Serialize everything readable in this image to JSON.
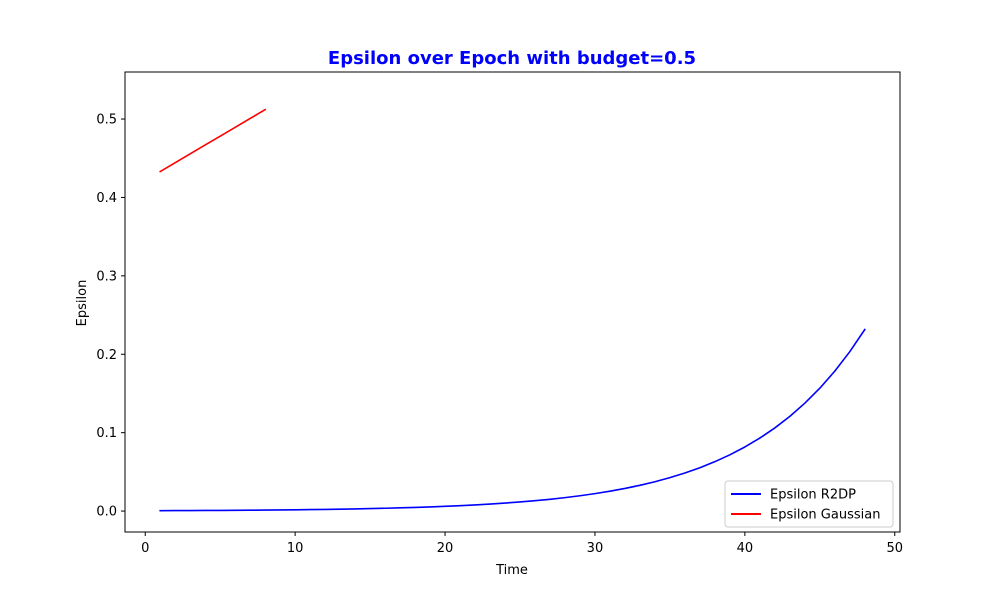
{
  "colors": {
    "title": "#0000ff",
    "axes": "#000000",
    "legend_border": "#cccccc"
  },
  "chart_data": {
    "type": "line",
    "title": "Epsilon over Epoch with budget=0.5",
    "xlabel": "Time",
    "ylabel": "Epsilon",
    "xlim": [
      -1.35,
      50.35
    ],
    "ylim": [
      -0.0267,
      0.56
    ],
    "xticks": [
      0,
      10,
      20,
      30,
      40,
      50
    ],
    "yticks": [
      0.0,
      0.1,
      0.2,
      0.3,
      0.4,
      0.5
    ],
    "ytick_labels": [
      "0.0",
      "0.1",
      "0.2",
      "0.3",
      "0.4",
      "0.5"
    ],
    "grid": false,
    "legend_position": "lower-right",
    "series": [
      {
        "name": "Epsilon R2DP",
        "color": "#0000ff",
        "x": [
          1,
          2,
          3,
          4,
          5,
          6,
          7,
          8,
          9,
          10,
          11,
          12,
          13,
          14,
          15,
          16,
          17,
          18,
          19,
          20,
          21,
          22,
          23,
          24,
          25,
          26,
          27,
          28,
          29,
          30,
          31,
          32,
          33,
          34,
          35,
          36,
          37,
          38,
          39,
          40,
          41,
          42,
          43,
          44,
          45,
          46,
          47,
          48
        ],
        "y": [
          0.00051,
          0.00058,
          0.00066,
          0.00075,
          0.00086,
          0.00098,
          0.00111,
          0.00127,
          0.00144,
          0.00164,
          0.00187,
          0.00213,
          0.00243,
          0.00277,
          0.00315,
          0.00359,
          0.00409,
          0.00466,
          0.00531,
          0.00605,
          0.00689,
          0.00785,
          0.00894,
          0.01018,
          0.0116,
          0.01321,
          0.01505,
          0.01714,
          0.01952,
          0.02223,
          0.02533,
          0.02885,
          0.03286,
          0.03743,
          0.04263,
          0.04856,
          0.05531,
          0.063,
          0.07175,
          0.08173,
          0.09309,
          0.10603,
          0.12077,
          0.13756,
          0.15668,
          0.17846,
          0.20327,
          0.23153
        ]
      },
      {
        "name": "Epsilon Gaussian",
        "color": "#ff0000",
        "x": [
          1,
          2,
          3,
          4,
          5,
          6,
          7,
          8
        ],
        "y": [
          0.433,
          0.4443,
          0.4556,
          0.4669,
          0.4781,
          0.4894,
          0.5007,
          0.512
        ]
      }
    ]
  }
}
